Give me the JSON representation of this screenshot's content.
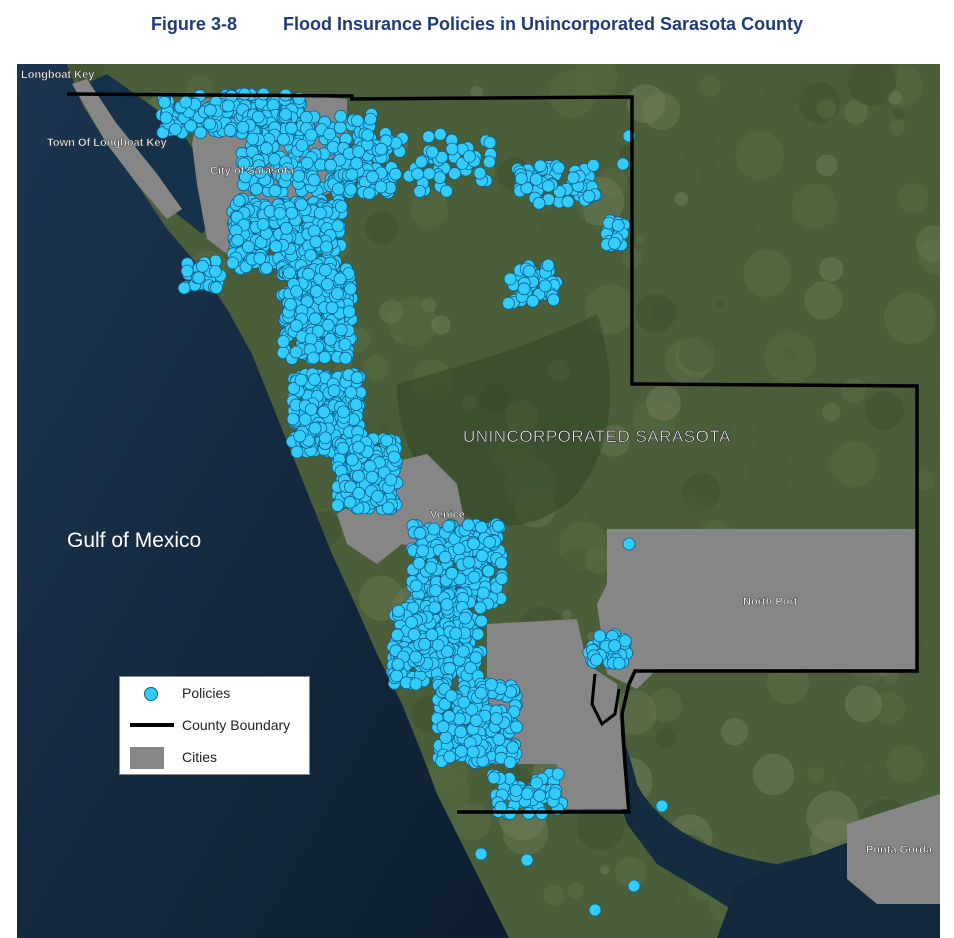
{
  "figure": {
    "number": "Figure 3-8",
    "title": "Flood Insurance Policies in Unincorporated Sarasota County"
  },
  "map": {
    "labels": {
      "longboat_key": "Longboat Key",
      "town_of_longboat_key": "Town Of Longboat Key",
      "city_of_sarasota": "City of Sarasota",
      "unincorporated": "UNINCORPORATED SARASOTA",
      "venice": "Venice",
      "north_port": "North Port",
      "punta_gorda": "Punta Gorda",
      "gulf": "Gulf of Mexico"
    },
    "colors": {
      "water": "#0f2338",
      "land": "#4b5e3a",
      "policy_dot": "#33ccff",
      "boundary": "#000000",
      "cities": "#868686"
    }
  },
  "legend": {
    "items": [
      {
        "label": "Policies",
        "symbol": "policy-dot"
      },
      {
        "label": "County Boundary",
        "symbol": "boundary-line"
      },
      {
        "label": "Cities",
        "symbol": "city-fill"
      }
    ]
  }
}
